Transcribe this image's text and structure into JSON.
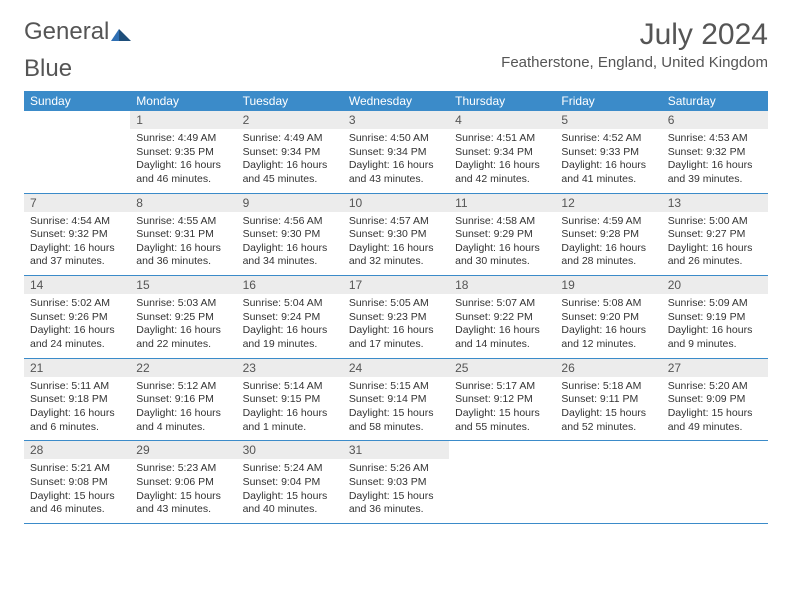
{
  "logo": {
    "text_a": "General",
    "text_b": "Blue",
    "color_a": "#555555",
    "color_b": "#2f6fb3"
  },
  "title": "July 2024",
  "location": "Featherstone, England, United Kingdom",
  "header_bg": "#3b8bc9",
  "header_fg": "#ffffff",
  "daynum_bg": "#ececec",
  "row_border": "#3b8bc9",
  "font_family": "Arial",
  "day_names": [
    "Sunday",
    "Monday",
    "Tuesday",
    "Wednesday",
    "Thursday",
    "Friday",
    "Saturday"
  ],
  "weeks": [
    [
      {
        "n": "",
        "lines": []
      },
      {
        "n": "1",
        "lines": [
          "Sunrise: 4:49 AM",
          "Sunset: 9:35 PM",
          "Daylight: 16 hours and 46 minutes."
        ]
      },
      {
        "n": "2",
        "lines": [
          "Sunrise: 4:49 AM",
          "Sunset: 9:34 PM",
          "Daylight: 16 hours and 45 minutes."
        ]
      },
      {
        "n": "3",
        "lines": [
          "Sunrise: 4:50 AM",
          "Sunset: 9:34 PM",
          "Daylight: 16 hours and 43 minutes."
        ]
      },
      {
        "n": "4",
        "lines": [
          "Sunrise: 4:51 AM",
          "Sunset: 9:34 PM",
          "Daylight: 16 hours and 42 minutes."
        ]
      },
      {
        "n": "5",
        "lines": [
          "Sunrise: 4:52 AM",
          "Sunset: 9:33 PM",
          "Daylight: 16 hours and 41 minutes."
        ]
      },
      {
        "n": "6",
        "lines": [
          "Sunrise: 4:53 AM",
          "Sunset: 9:32 PM",
          "Daylight: 16 hours and 39 minutes."
        ]
      }
    ],
    [
      {
        "n": "7",
        "lines": [
          "Sunrise: 4:54 AM",
          "Sunset: 9:32 PM",
          "Daylight: 16 hours and 37 minutes."
        ]
      },
      {
        "n": "8",
        "lines": [
          "Sunrise: 4:55 AM",
          "Sunset: 9:31 PM",
          "Daylight: 16 hours and 36 minutes."
        ]
      },
      {
        "n": "9",
        "lines": [
          "Sunrise: 4:56 AM",
          "Sunset: 9:30 PM",
          "Daylight: 16 hours and 34 minutes."
        ]
      },
      {
        "n": "10",
        "lines": [
          "Sunrise: 4:57 AM",
          "Sunset: 9:30 PM",
          "Daylight: 16 hours and 32 minutes."
        ]
      },
      {
        "n": "11",
        "lines": [
          "Sunrise: 4:58 AM",
          "Sunset: 9:29 PM",
          "Daylight: 16 hours and 30 minutes."
        ]
      },
      {
        "n": "12",
        "lines": [
          "Sunrise: 4:59 AM",
          "Sunset: 9:28 PM",
          "Daylight: 16 hours and 28 minutes."
        ]
      },
      {
        "n": "13",
        "lines": [
          "Sunrise: 5:00 AM",
          "Sunset: 9:27 PM",
          "Daylight: 16 hours and 26 minutes."
        ]
      }
    ],
    [
      {
        "n": "14",
        "lines": [
          "Sunrise: 5:02 AM",
          "Sunset: 9:26 PM",
          "Daylight: 16 hours and 24 minutes."
        ]
      },
      {
        "n": "15",
        "lines": [
          "Sunrise: 5:03 AM",
          "Sunset: 9:25 PM",
          "Daylight: 16 hours and 22 minutes."
        ]
      },
      {
        "n": "16",
        "lines": [
          "Sunrise: 5:04 AM",
          "Sunset: 9:24 PM",
          "Daylight: 16 hours and 19 minutes."
        ]
      },
      {
        "n": "17",
        "lines": [
          "Sunrise: 5:05 AM",
          "Sunset: 9:23 PM",
          "Daylight: 16 hours and 17 minutes."
        ]
      },
      {
        "n": "18",
        "lines": [
          "Sunrise: 5:07 AM",
          "Sunset: 9:22 PM",
          "Daylight: 16 hours and 14 minutes."
        ]
      },
      {
        "n": "19",
        "lines": [
          "Sunrise: 5:08 AM",
          "Sunset: 9:20 PM",
          "Daylight: 16 hours and 12 minutes."
        ]
      },
      {
        "n": "20",
        "lines": [
          "Sunrise: 5:09 AM",
          "Sunset: 9:19 PM",
          "Daylight: 16 hours and 9 minutes."
        ]
      }
    ],
    [
      {
        "n": "21",
        "lines": [
          "Sunrise: 5:11 AM",
          "Sunset: 9:18 PM",
          "Daylight: 16 hours and 6 minutes."
        ]
      },
      {
        "n": "22",
        "lines": [
          "Sunrise: 5:12 AM",
          "Sunset: 9:16 PM",
          "Daylight: 16 hours and 4 minutes."
        ]
      },
      {
        "n": "23",
        "lines": [
          "Sunrise: 5:14 AM",
          "Sunset: 9:15 PM",
          "Daylight: 16 hours and 1 minute."
        ]
      },
      {
        "n": "24",
        "lines": [
          "Sunrise: 5:15 AM",
          "Sunset: 9:14 PM",
          "Daylight: 15 hours and 58 minutes."
        ]
      },
      {
        "n": "25",
        "lines": [
          "Sunrise: 5:17 AM",
          "Sunset: 9:12 PM",
          "Daylight: 15 hours and 55 minutes."
        ]
      },
      {
        "n": "26",
        "lines": [
          "Sunrise: 5:18 AM",
          "Sunset: 9:11 PM",
          "Daylight: 15 hours and 52 minutes."
        ]
      },
      {
        "n": "27",
        "lines": [
          "Sunrise: 5:20 AM",
          "Sunset: 9:09 PM",
          "Daylight: 15 hours and 49 minutes."
        ]
      }
    ],
    [
      {
        "n": "28",
        "lines": [
          "Sunrise: 5:21 AM",
          "Sunset: 9:08 PM",
          "Daylight: 15 hours and 46 minutes."
        ]
      },
      {
        "n": "29",
        "lines": [
          "Sunrise: 5:23 AM",
          "Sunset: 9:06 PM",
          "Daylight: 15 hours and 43 minutes."
        ]
      },
      {
        "n": "30",
        "lines": [
          "Sunrise: 5:24 AM",
          "Sunset: 9:04 PM",
          "Daylight: 15 hours and 40 minutes."
        ]
      },
      {
        "n": "31",
        "lines": [
          "Sunrise: 5:26 AM",
          "Sunset: 9:03 PM",
          "Daylight: 15 hours and 36 minutes."
        ]
      },
      {
        "n": "",
        "lines": []
      },
      {
        "n": "",
        "lines": []
      },
      {
        "n": "",
        "lines": []
      }
    ]
  ]
}
